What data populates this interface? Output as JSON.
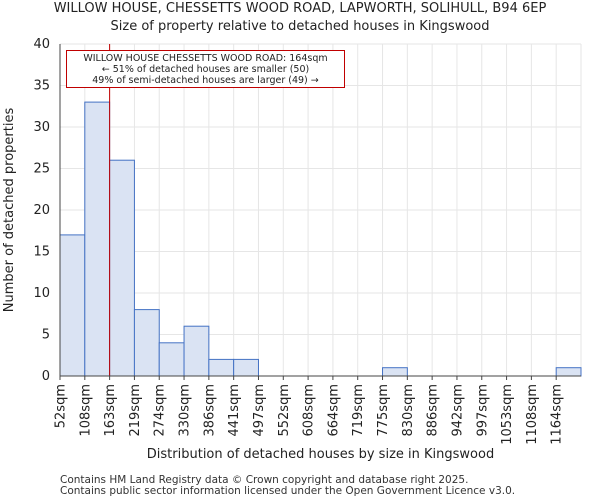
{
  "title": {
    "line1": "WILLOW HOUSE, CHESSETTS WOOD ROAD, LAPWORTH, SOLIHULL, B94 6EP",
    "line2": "Size of property relative to detached houses in Kingswood"
  },
  "annotation": {
    "line1": "WILLOW HOUSE CHESSETTS WOOD ROAD: 164sqm",
    "line2": "← 51% of detached houses are smaller (50)",
    "line3": "49% of semi-detached houses are larger (49) →"
  },
  "footer": {
    "line1": "Contains HM Land Registry data © Crown copyright and database right 2025.",
    "line2": "Contains public sector information licensed under the Open Government Licence v3.0."
  },
  "colors": {
    "bar_fill": "#dae3f3",
    "bar_stroke": "#4472c4",
    "marker": "#c00000",
    "grid": "#e6e6e6"
  },
  "chart_data": {
    "type": "bar",
    "title": "Size of property relative to detached houses in Kingswood",
    "xlabel": "Distribution of detached houses by size in Kingswood",
    "ylabel": "Number of detached properties",
    "categories": [
      "52sqm",
      "108sqm",
      "163sqm",
      "219sqm",
      "274sqm",
      "330sqm",
      "386sqm",
      "441sqm",
      "497sqm",
      "552sqm",
      "608sqm",
      "664sqm",
      "719sqm",
      "775sqm",
      "830sqm",
      "886sqm",
      "942sqm",
      "997sqm",
      "1053sqm",
      "1108sqm",
      "1164sqm"
    ],
    "values": [
      17,
      33,
      26,
      8,
      4,
      6,
      2,
      2,
      0,
      0,
      0,
      0,
      0,
      1,
      0,
      0,
      0,
      0,
      0,
      0,
      1
    ],
    "ylim": [
      0,
      40
    ],
    "yticks": [
      0,
      5,
      10,
      15,
      20,
      25,
      30,
      35,
      40
    ],
    "marker_value": "164sqm",
    "marker_index": 2,
    "grid": true
  }
}
